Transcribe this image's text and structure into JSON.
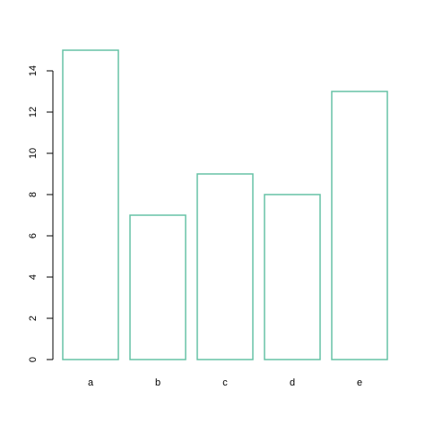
{
  "chart_data": {
    "type": "bar",
    "categories": [
      "a",
      "b",
      "c",
      "d",
      "e"
    ],
    "values": [
      15,
      7,
      9,
      8,
      13
    ],
    "ylim": [
      0,
      15
    ],
    "yticks": [
      0,
      2,
      4,
      6,
      8,
      10,
      12,
      14
    ],
    "title": "",
    "xlabel": "",
    "ylabel": "",
    "bar_outline_color": "#66c2a5",
    "bar_fill_color": "#ffffff",
    "grid": false,
    "legend": "none"
  }
}
